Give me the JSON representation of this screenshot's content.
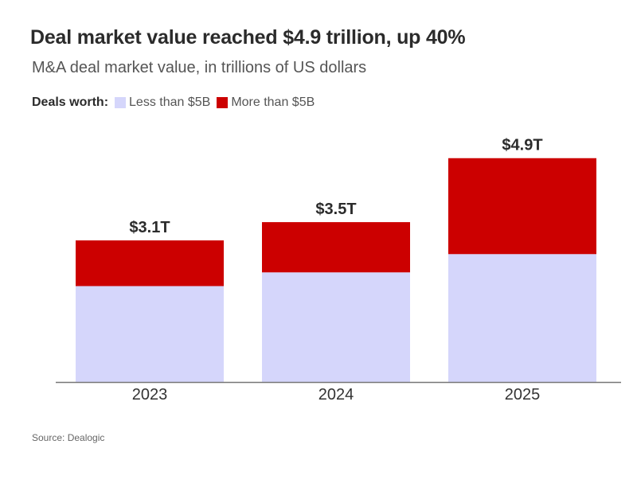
{
  "chart_data": {
    "type": "bar",
    "stacked": true,
    "title": "Deal market value reached $4.9 trillion, up 40%",
    "subtitle": "M&A deal market value, in trillions of US dollars",
    "legend_label": "Deals worth:",
    "categories": [
      "2023",
      "2024",
      "2025"
    ],
    "series": [
      {
        "name": "Less than $5B",
        "color": "#d5d6fb",
        "values": [
          2.1,
          2.4,
          2.8
        ]
      },
      {
        "name": "More than $5B",
        "color": "#cc0000",
        "values": [
          1.0,
          1.1,
          2.1
        ]
      }
    ],
    "totals": [
      3.1,
      3.5,
      4.9
    ],
    "total_labels": [
      "$3.1T",
      "$3.5T",
      "$4.9T"
    ],
    "xlabel": "",
    "ylabel": "",
    "ylim": [
      0,
      5.2
    ],
    "grid": false,
    "legend_position": "top-left",
    "source": "Source: Dealogic"
  }
}
